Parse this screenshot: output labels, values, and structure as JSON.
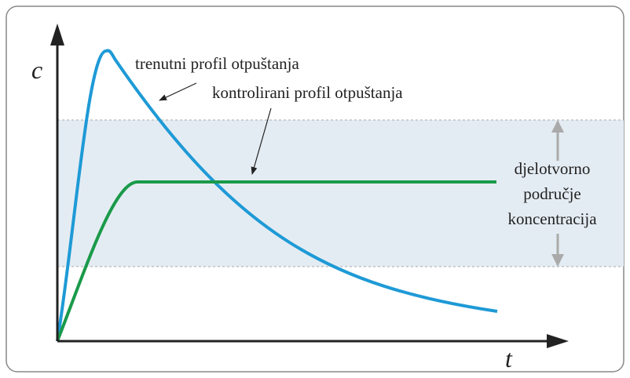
{
  "axes": {
    "y_label": "c",
    "x_label": "t"
  },
  "curves": [
    {
      "label": "trenutni profil otpuštanja"
    },
    {
      "label": "kontrolirani profil otpuštanja"
    }
  ],
  "band": {
    "label_lines": [
      "djelotvorno",
      "područje",
      "koncentracija"
    ]
  }
}
